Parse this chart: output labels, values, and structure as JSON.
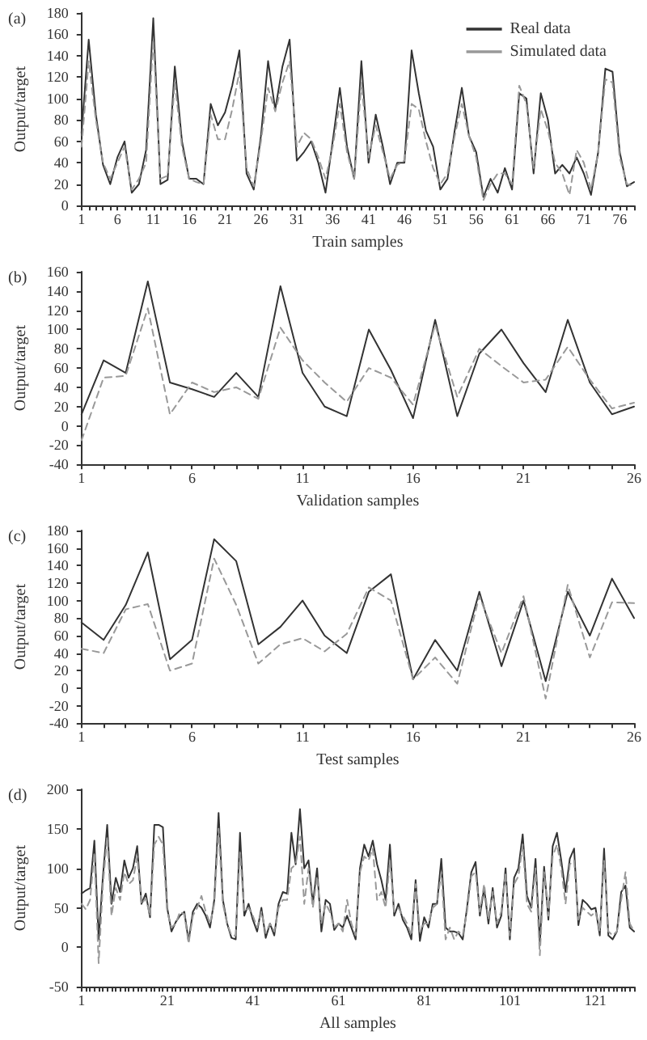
{
  "chart_data": [
    {
      "type": "line",
      "title": "(a)",
      "xlabel": "Train samples",
      "ylabel": "Output/target",
      "legend": "top right",
      "marker": "none",
      "grid": false,
      "ylim": [
        0,
        180
      ],
      "yticks": [
        0,
        20,
        40,
        60,
        80,
        100,
        120,
        140,
        160,
        180
      ],
      "x": [
        1,
        2,
        3,
        4,
        5,
        6,
        7,
        8,
        9,
        10,
        11,
        12,
        13,
        14,
        15,
        16,
        17,
        18,
        19,
        20,
        21,
        22,
        23,
        24,
        25,
        26,
        27,
        28,
        29,
        30,
        31,
        32,
        33,
        34,
        35,
        36,
        37,
        38,
        39,
        40,
        41,
        42,
        43,
        44,
        45,
        46,
        47,
        48,
        49,
        50,
        51,
        52,
        53,
        54,
        55,
        56,
        57,
        58,
        59,
        60,
        61,
        62,
        63,
        64,
        65,
        66,
        67,
        68,
        69,
        70,
        71,
        72,
        73,
        74,
        75,
        76,
        77,
        78
      ],
      "xlim": [
        1,
        78
      ],
      "xticks": [
        1,
        {
          "value": 2,
          "label": null
        },
        {
          "value": 3,
          "label": null
        },
        {
          "value": 4,
          "label": null
        },
        {
          "value": 5,
          "label": null
        },
        6,
        {
          "value": 7,
          "label": null
        },
        {
          "value": 8,
          "label": null
        },
        {
          "value": 9,
          "label": null
        },
        {
          "value": 10,
          "label": null
        },
        11,
        {
          "value": 12,
          "label": null
        },
        {
          "value": 13,
          "label": null
        },
        {
          "value": 14,
          "label": null
        },
        {
          "value": 15,
          "label": null
        },
        16,
        {
          "value": 17,
          "label": null
        },
        {
          "value": 18,
          "label": null
        },
        {
          "value": 19,
          "label": null
        },
        {
          "value": 20,
          "label": null
        },
        21,
        {
          "value": 22,
          "label": null
        },
        {
          "value": 23,
          "label": null
        },
        {
          "value": 24,
          "label": null
        },
        {
          "value": 25,
          "label": null
        },
        26,
        {
          "value": 27,
          "label": null
        },
        {
          "value": 28,
          "label": null
        },
        {
          "value": 29,
          "label": null
        },
        {
          "value": 30,
          "label": null
        },
        31,
        {
          "value": 32,
          "label": null
        },
        {
          "value": 33,
          "label": null
        },
        {
          "value": 34,
          "label": null
        },
        {
          "value": 35,
          "label": null
        },
        36,
        {
          "value": 37,
          "label": null
        },
        {
          "value": 38,
          "label": null
        },
        {
          "value": 39,
          "label": null
        },
        {
          "value": 40,
          "label": null
        },
        41,
        {
          "value": 42,
          "label": null
        },
        {
          "value": 43,
          "label": null
        },
        {
          "value": 44,
          "label": null
        },
        {
          "value": 45,
          "label": null
        },
        46,
        {
          "value": 47,
          "label": null
        },
        {
          "value": 48,
          "label": null
        },
        {
          "value": 49,
          "label": null
        },
        {
          "value": 50,
          "label": null
        },
        51,
        {
          "value": 52,
          "label": null
        },
        {
          "value": 53,
          "label": null
        },
        {
          "value": 54,
          "label": null
        },
        {
          "value": 55,
          "label": null
        },
        56,
        {
          "value": 57,
          "label": null
        },
        {
          "value": 58,
          "label": null
        },
        {
          "value": 59,
          "label": null
        },
        {
          "value": 60,
          "label": null
        },
        61,
        {
          "value": 62,
          "label": null
        },
        {
          "value": 63,
          "label": null
        },
        {
          "value": 64,
          "label": null
        },
        {
          "value": 65,
          "label": null
        },
        66,
        {
          "value": 67,
          "label": null
        },
        {
          "value": 68,
          "label": null
        },
        {
          "value": 69,
          "label": null
        },
        {
          "value": 70,
          "label": null
        },
        71,
        {
          "value": 72,
          "label": null
        },
        {
          "value": 73,
          "label": null
        },
        {
          "value": 74,
          "label": null
        },
        {
          "value": 75,
          "label": null
        },
        76,
        {
          "value": 77,
          "label": null
        },
        {
          "value": 78,
          "label": null
        }
      ],
      "series": [
        {
          "name": "Real data",
          "color": "#333333",
          "line_style": "solid",
          "values": [
            68,
            155,
            85,
            38,
            20,
            45,
            60,
            12,
            20,
            52,
            175,
            20,
            24,
            130,
            60,
            25,
            25,
            20,
            95,
            75,
            87,
            112,
            145,
            30,
            15,
            65,
            135,
            90,
            130,
            155,
            42,
            50,
            60,
            40,
            12,
            60,
            110,
            55,
            25,
            135,
            40,
            85,
            55,
            20,
            40,
            40,
            145,
            105,
            70,
            55,
            15,
            25,
            70,
            110,
            65,
            50,
            8,
            25,
            12,
            35,
            15,
            105,
            100,
            30,
            105,
            80,
            30,
            38,
            30,
            45,
            30,
            10,
            50,
            128,
            125,
            50,
            18,
            22
          ]
        },
        {
          "name": "Simulated data",
          "color": "#999999",
          "line_style": "dashed",
          "values": [
            55,
            135,
            80,
            40,
            25,
            40,
            55,
            15,
            25,
            40,
            155,
            25,
            28,
            115,
            55,
            25,
            22,
            20,
            85,
            62,
            62,
            90,
            125,
            35,
            18,
            60,
            110,
            88,
            115,
            135,
            55,
            68,
            62,
            45,
            25,
            55,
            95,
            50,
            25,
            115,
            45,
            75,
            50,
            25,
            38,
            42,
            95,
            90,
            60,
            35,
            20,
            30,
            65,
            95,
            65,
            45,
            5,
            20,
            30,
            30,
            20,
            112,
            95,
            35,
            90,
            70,
            40,
            30,
            10,
            52,
            40,
            15,
            50,
            118,
            115,
            45,
            20,
            18
          ]
        }
      ]
    },
    {
      "type": "line",
      "title": "(b)",
      "xlabel": "Validation samples",
      "ylabel": "Output/target",
      "marker": "none",
      "grid": false,
      "ylim": [
        -40,
        160
      ],
      "yticks": [
        -40,
        -20,
        0,
        20,
        40,
        60,
        80,
        100,
        120,
        140,
        160
      ],
      "x": [
        1,
        2,
        3,
        4,
        5,
        6,
        7,
        8,
        9,
        10,
        11,
        12,
        13,
        14,
        15,
        16,
        17,
        18,
        19,
        20,
        21,
        22,
        23,
        24,
        25,
        26
      ],
      "xlim": [
        1,
        26
      ],
      "xticks": [
        1,
        {
          "value": 2,
          "label": null
        },
        {
          "value": 3,
          "label": null
        },
        {
          "value": 4,
          "label": null
        },
        {
          "value": 5,
          "label": null
        },
        6,
        {
          "value": 7,
          "label": null
        },
        {
          "value": 8,
          "label": null
        },
        {
          "value": 9,
          "label": null
        },
        {
          "value": 10,
          "label": null
        },
        11,
        {
          "value": 12,
          "label": null
        },
        {
          "value": 13,
          "label": null
        },
        {
          "value": 14,
          "label": null
        },
        {
          "value": 15,
          "label": null
        },
        16,
        {
          "value": 17,
          "label": null
        },
        {
          "value": 18,
          "label": null
        },
        {
          "value": 19,
          "label": null
        },
        {
          "value": 20,
          "label": null
        },
        21,
        {
          "value": 22,
          "label": null
        },
        {
          "value": 23,
          "label": null
        },
        {
          "value": 24,
          "label": null
        },
        {
          "value": 25,
          "label": null
        },
        26
      ],
      "series": [
        {
          "color": "#333333",
          "line_style": "solid",
          "values": [
            12,
            68,
            55,
            150,
            45,
            38,
            30,
            55,
            30,
            145,
            55,
            20,
            10,
            100,
            58,
            8,
            110,
            10,
            75,
            100,
            65,
            35,
            110,
            45,
            12,
            20
          ]
        },
        {
          "color": "#999999",
          "line_style": "dashed",
          "values": [
            -15,
            50,
            52,
            122,
            12,
            45,
            35,
            40,
            28,
            102,
            68,
            45,
            25,
            60,
            50,
            22,
            105,
            30,
            80,
            62,
            45,
            48,
            82,
            48,
            18,
            24
          ]
        }
      ]
    },
    {
      "type": "line",
      "title": "(c)",
      "xlabel": "Test samples",
      "ylabel": "Output/target",
      "marker": "none",
      "grid": false,
      "ylim": [
        -40,
        180
      ],
      "yticks": [
        -40,
        -20,
        0,
        20,
        40,
        60,
        80,
        100,
        120,
        140,
        160,
        180
      ],
      "x": [
        1,
        2,
        3,
        4,
        5,
        6,
        7,
        8,
        9,
        10,
        11,
        12,
        13,
        14,
        15,
        16,
        17,
        18,
        19,
        20,
        21,
        22,
        23,
        24,
        25,
        26
      ],
      "xlim": [
        1,
        26
      ],
      "xticks": [
        1,
        {
          "value": 2,
          "label": null
        },
        {
          "value": 3,
          "label": null
        },
        {
          "value": 4,
          "label": null
        },
        {
          "value": 5,
          "label": null
        },
        6,
        {
          "value": 7,
          "label": null
        },
        {
          "value": 8,
          "label": null
        },
        {
          "value": 9,
          "label": null
        },
        {
          "value": 10,
          "label": null
        },
        11,
        {
          "value": 12,
          "label": null
        },
        {
          "value": 13,
          "label": null
        },
        {
          "value": 14,
          "label": null
        },
        {
          "value": 15,
          "label": null
        },
        16,
        {
          "value": 17,
          "label": null
        },
        {
          "value": 18,
          "label": null
        },
        {
          "value": 19,
          "label": null
        },
        {
          "value": 20,
          "label": null
        },
        21,
        {
          "value": 22,
          "label": null
        },
        {
          "value": 23,
          "label": null
        },
        {
          "value": 24,
          "label": null
        },
        {
          "value": 25,
          "label": null
        },
        26
      ],
      "series": [
        {
          "color": "#333333",
          "line_style": "solid",
          "values": [
            75,
            55,
            95,
            155,
            33,
            55,
            170,
            145,
            50,
            70,
            100,
            60,
            40,
            110,
            130,
            10,
            55,
            20,
            110,
            25,
            100,
            8,
            110,
            60,
            125,
            80
          ]
        },
        {
          "color": "#999999",
          "line_style": "dashed",
          "values": [
            45,
            40,
            90,
            96,
            20,
            28,
            148,
            95,
            28,
            50,
            57,
            42,
            62,
            115,
            100,
            10,
            35,
            5,
            105,
            40,
            105,
            -12,
            118,
            35,
            98,
            97
          ]
        }
      ]
    },
    {
      "type": "line",
      "title": "(d)",
      "xlabel": "All samples",
      "ylabel": "Output/target",
      "marker": "none",
      "grid": false,
      "ylim": [
        -50,
        200
      ],
      "yticks": [
        -50,
        0,
        50,
        100,
        150,
        200
      ],
      "x": [
        1,
        2,
        3,
        4,
        5,
        6,
        7,
        8,
        9,
        10,
        11,
        12,
        13,
        14,
        15,
        16,
        17,
        18,
        19,
        20,
        21,
        22,
        23,
        24,
        25,
        26,
        27,
        28,
        29,
        30,
        31,
        32,
        33,
        34,
        35,
        36,
        37,
        38,
        39,
        40,
        41,
        42,
        43,
        44,
        45,
        46,
        47,
        48,
        49,
        50,
        51,
        52,
        53,
        54,
        55,
        56,
        57,
        58,
        59,
        60,
        61,
        62,
        63,
        64,
        65,
        66,
        67,
        68,
        69,
        70,
        71,
        72,
        73,
        74,
        75,
        76,
        77,
        78,
        79,
        80,
        81,
        82,
        83,
        84,
        85,
        86,
        87,
        88,
        89,
        90,
        91,
        92,
        93,
        94,
        95,
        96,
        97,
        98,
        99,
        100,
        101,
        102,
        103,
        104,
        105,
        106,
        107,
        108,
        109,
        110,
        111,
        112,
        113,
        114,
        115,
        116,
        117,
        118,
        119,
        120,
        121,
        122,
        123,
        124,
        125,
        126,
        127,
        128,
        129,
        130
      ],
      "xlim": [
        1,
        130
      ],
      "xticks": [
        1,
        {
          "value": 2,
          "label": null
        },
        {
          "value": 3,
          "label": null
        },
        {
          "value": 4,
          "label": null
        },
        {
          "value": 5,
          "label": null
        },
        {
          "value": 6,
          "label": null
        },
        {
          "value": 7,
          "label": null
        },
        {
          "value": 8,
          "label": null
        },
        {
          "value": 9,
          "label": null
        },
        {
          "value": 10,
          "label": null
        },
        {
          "value": 11,
          "label": null
        },
        {
          "value": 12,
          "label": null
        },
        {
          "value": 13,
          "label": null
        },
        {
          "value": 14,
          "label": null
        },
        {
          "value": 15,
          "label": null
        },
        {
          "value": 16,
          "label": null
        },
        {
          "value": 17,
          "label": null
        },
        {
          "value": 18,
          "label": null
        },
        {
          "value": 19,
          "label": null
        },
        {
          "value": 20,
          "label": null
        },
        21,
        {
          "value": 22,
          "label": null
        },
        {
          "value": 23,
          "label": null
        },
        {
          "value": 24,
          "label": null
        },
        {
          "value": 25,
          "label": null
        },
        {
          "value": 26,
          "label": null
        },
        {
          "value": 27,
          "label": null
        },
        {
          "value": 28,
          "label": null
        },
        {
          "value": 29,
          "label": null
        },
        {
          "value": 30,
          "label": null
        },
        {
          "value": 31,
          "label": null
        },
        {
          "value": 32,
          "label": null
        },
        {
          "value": 33,
          "label": null
        },
        {
          "value": 34,
          "label": null
        },
        {
          "value": 35,
          "label": null
        },
        {
          "value": 36,
          "label": null
        },
        {
          "value": 37,
          "label": null
        },
        {
          "value": 38,
          "label": null
        },
        {
          "value": 39,
          "label": null
        },
        {
          "value": 40,
          "label": null
        },
        41,
        {
          "value": 42,
          "label": null
        },
        {
          "value": 43,
          "label": null
        },
        {
          "value": 44,
          "label": null
        },
        {
          "value": 45,
          "label": null
        },
        {
          "value": 46,
          "label": null
        },
        {
          "value": 47,
          "label": null
        },
        {
          "value": 48,
          "label": null
        },
        {
          "value": 49,
          "label": null
        },
        {
          "value": 50,
          "label": null
        },
        {
          "value": 51,
          "label": null
        },
        {
          "value": 52,
          "label": null
        },
        {
          "value": 53,
          "label": null
        },
        {
          "value": 54,
          "label": null
        },
        {
          "value": 55,
          "label": null
        },
        {
          "value": 56,
          "label": null
        },
        {
          "value": 57,
          "label": null
        },
        {
          "value": 58,
          "label": null
        },
        {
          "value": 59,
          "label": null
        },
        {
          "value": 60,
          "label": null
        },
        61,
        {
          "value": 62,
          "label": null
        },
        {
          "value": 63,
          "label": null
        },
        {
          "value": 64,
          "label": null
        },
        {
          "value": 65,
          "label": null
        },
        {
          "value": 66,
          "label": null
        },
        {
          "value": 67,
          "label": null
        },
        {
          "value": 68,
          "label": null
        },
        {
          "value": 69,
          "label": null
        },
        {
          "value": 70,
          "label": null
        },
        {
          "value": 71,
          "label": null
        },
        {
          "value": 72,
          "label": null
        },
        {
          "value": 73,
          "label": null
        },
        {
          "value": 74,
          "label": null
        },
        {
          "value": 75,
          "label": null
        },
        {
          "value": 76,
          "label": null
        },
        {
          "value": 77,
          "label": null
        },
        {
          "value": 78,
          "label": null
        },
        {
          "value": 79,
          "label": null
        },
        {
          "value": 80,
          "label": null
        },
        81,
        {
          "value": 82,
          "label": null
        },
        {
          "value": 83,
          "label": null
        },
        {
          "value": 84,
          "label": null
        },
        {
          "value": 85,
          "label": null
        },
        {
          "value": 86,
          "label": null
        },
        {
          "value": 87,
          "label": null
        },
        {
          "value": 88,
          "label": null
        },
        {
          "value": 89,
          "label": null
        },
        {
          "value": 90,
          "label": null
        },
        {
          "value": 91,
          "label": null
        },
        {
          "value": 92,
          "label": null
        },
        {
          "value": 93,
          "label": null
        },
        {
          "value": 94,
          "label": null
        },
        {
          "value": 95,
          "label": null
        },
        {
          "value": 96,
          "label": null
        },
        {
          "value": 97,
          "label": null
        },
        {
          "value": 98,
          "label": null
        },
        {
          "value": 99,
          "label": null
        },
        {
          "value": 100,
          "label": null
        },
        101,
        {
          "value": 102,
          "label": null
        },
        {
          "value": 103,
          "label": null
        },
        {
          "value": 104,
          "label": null
        },
        {
          "value": 105,
          "label": null
        },
        {
          "value": 106,
          "label": null
        },
        {
          "value": 107,
          "label": null
        },
        {
          "value": 108,
          "label": null
        },
        {
          "value": 109,
          "label": null
        },
        {
          "value": 110,
          "label": null
        },
        {
          "value": 111,
          "label": null
        },
        {
          "value": 112,
          "label": null
        },
        {
          "value": 113,
          "label": null
        },
        {
          "value": 114,
          "label": null
        },
        {
          "value": 115,
          "label": null
        },
        {
          "value": 116,
          "label": null
        },
        {
          "value": 117,
          "label": null
        },
        {
          "value": 118,
          "label": null
        },
        {
          "value": 119,
          "label": null
        },
        {
          "value": 120,
          "label": null
        },
        121,
        {
          "value": 122,
          "label": null
        },
        {
          "value": 123,
          "label": null
        },
        {
          "value": 124,
          "label": null
        },
        {
          "value": 125,
          "label": null
        },
        {
          "value": 126,
          "label": null
        },
        {
          "value": 127,
          "label": null
        },
        {
          "value": 128,
          "label": null
        },
        {
          "value": 129,
          "label": null
        },
        {
          "value": 130,
          "label": null
        }
      ],
      "series": [
        {
          "color": "#333333",
          "line_style": "solid",
          "values": [
            68,
            72,
            75,
            135,
            10,
            90,
            155,
            55,
            88,
            70,
            110,
            88,
            100,
            128,
            55,
            68,
            38,
            155,
            155,
            152,
            50,
            20,
            32,
            40,
            45,
            8,
            45,
            55,
            50,
            40,
            25,
            60,
            170,
            60,
            30,
            12,
            10,
            145,
            40,
            55,
            35,
            20,
            50,
            12,
            30,
            15,
            55,
            70,
            68,
            145,
            105,
            175,
            100,
            110,
            55,
            100,
            20,
            60,
            55,
            22,
            30,
            25,
            40,
            25,
            10,
            100,
            130,
            115,
            135,
            105,
            85,
            60,
            130,
            40,
            55,
            35,
            25,
            10,
            85,
            8,
            38,
            25,
            55,
            55,
            112,
            25,
            20,
            20,
            18,
            10,
            50,
            95,
            108,
            40,
            75,
            30,
            75,
            25,
            40,
            100,
            10,
            88,
            100,
            143,
            65,
            50,
            112,
            5,
            102,
            35,
            128,
            145,
            110,
            70,
            112,
            125,
            28,
            60,
            55,
            48,
            50,
            15,
            125,
            15,
            10,
            20,
            70,
            78,
            25,
            20
          ]
        },
        {
          "color": "#999999",
          "line_style": "dashed",
          "values": [
            55,
            48,
            60,
            120,
            -20,
            80,
            140,
            40,
            75,
            60,
            95,
            80,
            85,
            115,
            55,
            62,
            40,
            130,
            140,
            130,
            45,
            25,
            30,
            45,
            42,
            5,
            40,
            50,
            65,
            45,
            30,
            55,
            150,
            55,
            30,
            15,
            15,
            120,
            45,
            50,
            40,
            25,
            45,
            18,
            30,
            20,
            50,
            60,
            60,
            100,
            105,
            140,
            55,
            100,
            50,
            90,
            30,
            55,
            45,
            25,
            30,
            20,
            60,
            30,
            15,
            95,
            115,
            110,
            125,
            60,
            70,
            50,
            110,
            45,
            50,
            40,
            30,
            15,
            80,
            20,
            30,
            30,
            50,
            55,
            95,
            10,
            25,
            10,
            20,
            15,
            45,
            90,
            95,
            45,
            80,
            35,
            70,
            30,
            45,
            95,
            15,
            80,
            90,
            130,
            55,
            45,
            100,
            -10,
            95,
            40,
            115,
            130,
            100,
            55,
            105,
            110,
            35,
            50,
            45,
            40,
            45,
            20,
            110,
            20,
            15,
            20,
            60,
            95,
            30,
            20
          ]
        }
      ]
    }
  ]
}
